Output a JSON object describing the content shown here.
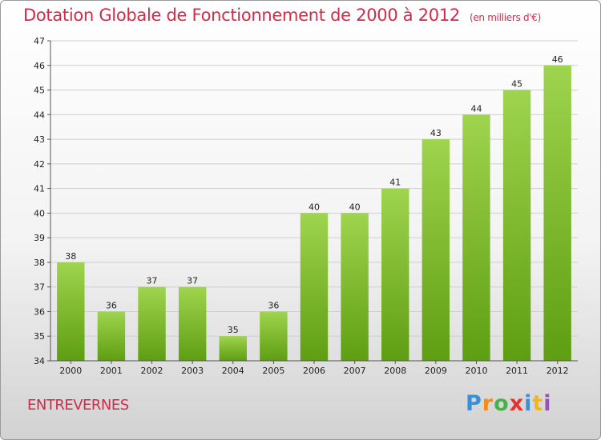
{
  "header": {
    "title": "Dotation Globale de Fonctionnement de 2000 à 2012",
    "unit": "(en milliers d'€)"
  },
  "commune": "ENTREVERNES",
  "brand": {
    "letters": [
      "P",
      "r",
      "o",
      "x",
      "i",
      "t",
      "i"
    ],
    "colors": [
      "#3a8fd6",
      "#f28a1c",
      "#4ab04a",
      "#e8312f",
      "#3a8fd6",
      "#f2b51c",
      "#9b4fb8"
    ]
  },
  "colors": {
    "bar_top": "#9fd44e",
    "bar_bottom": "#5e9e12",
    "grid": "#cfcfcf",
    "title": "#d42a4a"
  },
  "chart_data": {
    "type": "bar",
    "categories": [
      "2000",
      "2001",
      "2002",
      "2003",
      "2004",
      "2005",
      "2006",
      "2007",
      "2008",
      "2009",
      "2010",
      "2011",
      "2012"
    ],
    "values": [
      38,
      36,
      37,
      37,
      35,
      36,
      40,
      40,
      41,
      43,
      44,
      45,
      46
    ],
    "title": "Dotation Globale de Fonctionnement de 2000 à 2012",
    "subtitle": "(en milliers d'€)",
    "xlabel": "",
    "ylabel": "",
    "ylim": [
      34,
      47
    ],
    "yticks": [
      34,
      35,
      36,
      37,
      38,
      39,
      40,
      41,
      42,
      43,
      44,
      45,
      46,
      47
    ],
    "grid": true,
    "data_labels": true
  }
}
